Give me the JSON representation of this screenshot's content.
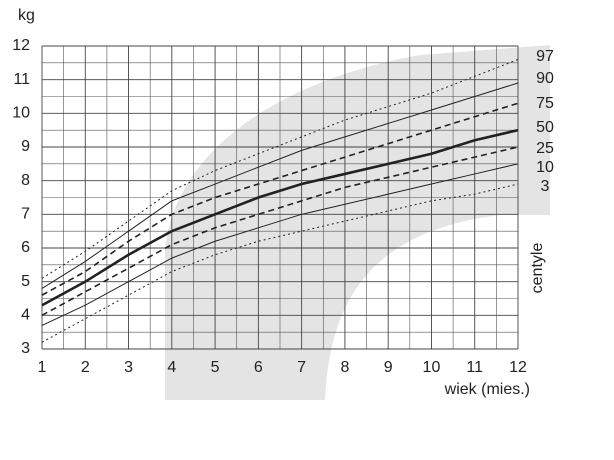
{
  "chart_data": {
    "type": "line",
    "y_label": "kg",
    "x_label": "wiek (mies.)",
    "legend_title": "centyle",
    "x": [
      1,
      2,
      3,
      4,
      5,
      6,
      7,
      8,
      9,
      10,
      11,
      12
    ],
    "xlim": [
      1,
      12
    ],
    "xticks": [
      1,
      2,
      3,
      4,
      5,
      6,
      7,
      8,
      9,
      10,
      11,
      12
    ],
    "ylim": [
      3,
      12
    ],
    "yticks": [
      3,
      4,
      5,
      6,
      7,
      8,
      9,
      10,
      11,
      12
    ],
    "grid": true,
    "series": [
      {
        "name": "97",
        "color": "#222",
        "style": "dotted",
        "values": [
          5.1,
          5.9,
          6.8,
          7.7,
          8.3,
          8.8,
          9.3,
          9.8,
          10.2,
          10.6,
          11.1,
          11.6
        ]
      },
      {
        "name": "90",
        "color": "#222",
        "style": "solid",
        "values": [
          4.8,
          5.6,
          6.5,
          7.4,
          7.9,
          8.4,
          8.9,
          9.3,
          9.7,
          10.1,
          10.5,
          10.9
        ]
      },
      {
        "name": "75",
        "color": "#222",
        "style": "dashed",
        "values": [
          4.6,
          5.3,
          6.2,
          7.0,
          7.5,
          7.9,
          8.3,
          8.7,
          9.1,
          9.5,
          9.9,
          10.3
        ]
      },
      {
        "name": "50",
        "color": "#222",
        "style": "bold",
        "values": [
          4.3,
          5.0,
          5.8,
          6.5,
          7.0,
          7.5,
          7.9,
          8.2,
          8.5,
          8.8,
          9.2,
          9.5
        ]
      },
      {
        "name": "25",
        "color": "#222",
        "style": "dashed",
        "values": [
          4.0,
          4.7,
          5.4,
          6.1,
          6.6,
          7.0,
          7.4,
          7.8,
          8.1,
          8.4,
          8.7,
          9.0
        ]
      },
      {
        "name": "10",
        "color": "#222",
        "style": "solid",
        "values": [
          3.7,
          4.3,
          5.0,
          5.7,
          6.2,
          6.6,
          7.0,
          7.3,
          7.6,
          7.9,
          8.2,
          8.5
        ]
      },
      {
        "name": "3",
        "color": "#222",
        "style": "dotted",
        "values": [
          3.2,
          3.9,
          4.6,
          5.3,
          5.8,
          6.2,
          6.5,
          6.8,
          7.1,
          7.4,
          7.6,
          7.9
        ]
      }
    ]
  }
}
